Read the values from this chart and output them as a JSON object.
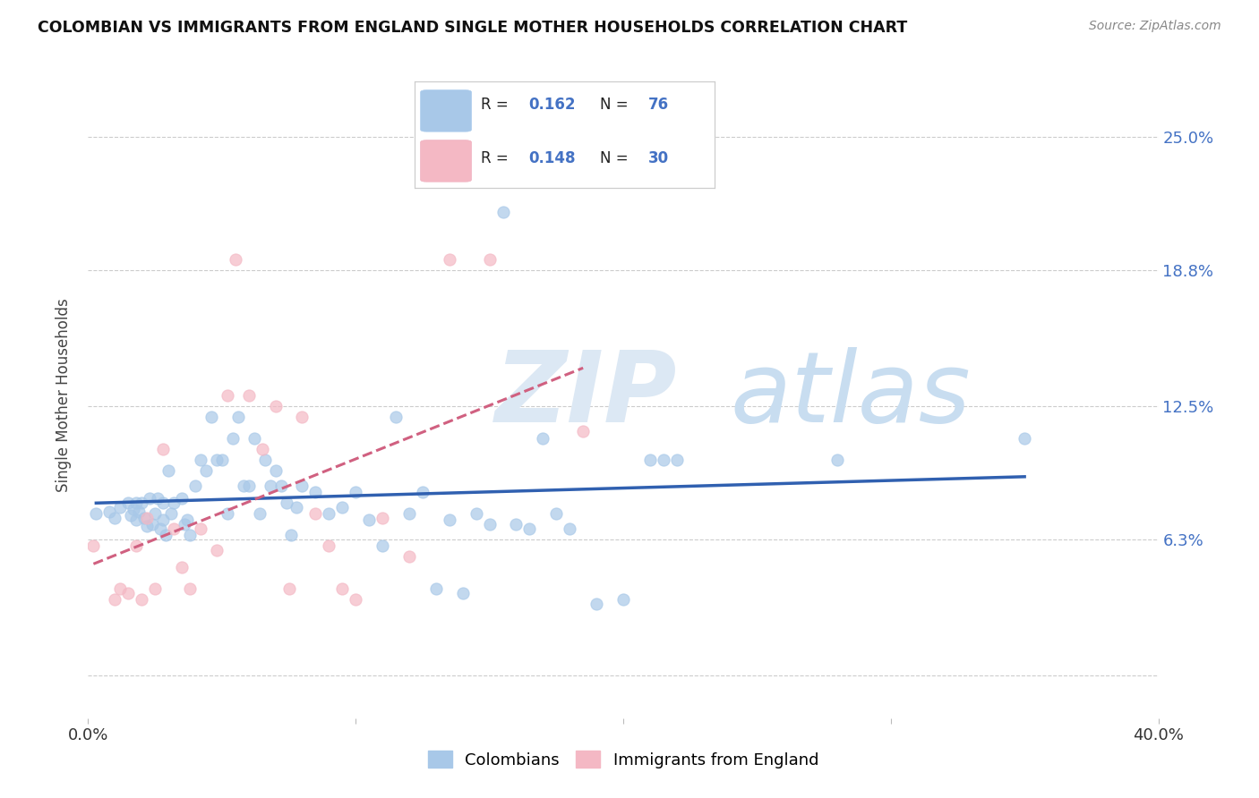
{
  "title": "COLOMBIAN VS IMMIGRANTS FROM ENGLAND SINGLE MOTHER HOUSEHOLDS CORRELATION CHART",
  "source": "Source: ZipAtlas.com",
  "ylabel": "Single Mother Households",
  "xlim": [
    0.0,
    0.4
  ],
  "ylim": [
    -0.02,
    0.28
  ],
  "colombians_R": "0.162",
  "colombians_N": "76",
  "england_R": "0.148",
  "england_N": "30",
  "colombian_color": "#a8c8e8",
  "england_color": "#f4b8c4",
  "colombian_line_color": "#3060b0",
  "england_line_color": "#d06080",
  "colombians_x": [
    0.003,
    0.008,
    0.01,
    0.012,
    0.015,
    0.016,
    0.017,
    0.018,
    0.018,
    0.019,
    0.02,
    0.021,
    0.022,
    0.023,
    0.024,
    0.025,
    0.026,
    0.027,
    0.028,
    0.028,
    0.029,
    0.03,
    0.031,
    0.032,
    0.035,
    0.036,
    0.037,
    0.038,
    0.04,
    0.042,
    0.044,
    0.046,
    0.048,
    0.05,
    0.052,
    0.054,
    0.056,
    0.058,
    0.06,
    0.062,
    0.064,
    0.066,
    0.068,
    0.07,
    0.072,
    0.074,
    0.076,
    0.078,
    0.08,
    0.085,
    0.09,
    0.095,
    0.1,
    0.105,
    0.11,
    0.115,
    0.12,
    0.125,
    0.13,
    0.135,
    0.14,
    0.145,
    0.15,
    0.155,
    0.16,
    0.165,
    0.17,
    0.175,
    0.18,
    0.19,
    0.2,
    0.21,
    0.215,
    0.22,
    0.28,
    0.35
  ],
  "colombians_y": [
    0.075,
    0.076,
    0.073,
    0.078,
    0.08,
    0.074,
    0.077,
    0.08,
    0.072,
    0.076,
    0.08,
    0.073,
    0.069,
    0.082,
    0.07,
    0.075,
    0.082,
    0.068,
    0.072,
    0.08,
    0.065,
    0.095,
    0.075,
    0.08,
    0.082,
    0.07,
    0.072,
    0.065,
    0.088,
    0.1,
    0.095,
    0.12,
    0.1,
    0.1,
    0.075,
    0.11,
    0.12,
    0.088,
    0.088,
    0.11,
    0.075,
    0.1,
    0.088,
    0.095,
    0.088,
    0.08,
    0.065,
    0.078,
    0.088,
    0.085,
    0.075,
    0.078,
    0.085,
    0.072,
    0.06,
    0.12,
    0.075,
    0.085,
    0.04,
    0.072,
    0.038,
    0.075,
    0.07,
    0.215,
    0.07,
    0.068,
    0.11,
    0.075,
    0.068,
    0.033,
    0.035,
    0.1,
    0.1,
    0.1,
    0.1,
    0.11
  ],
  "england_x": [
    0.002,
    0.01,
    0.012,
    0.015,
    0.018,
    0.02,
    0.022,
    0.025,
    0.028,
    0.032,
    0.035,
    0.038,
    0.042,
    0.048,
    0.052,
    0.055,
    0.06,
    0.065,
    0.07,
    0.075,
    0.08,
    0.085,
    0.09,
    0.095,
    0.1,
    0.11,
    0.12,
    0.135,
    0.15,
    0.185
  ],
  "england_y": [
    0.06,
    0.035,
    0.04,
    0.038,
    0.06,
    0.035,
    0.073,
    0.04,
    0.105,
    0.068,
    0.05,
    0.04,
    0.068,
    0.058,
    0.13,
    0.193,
    0.13,
    0.105,
    0.125,
    0.04,
    0.12,
    0.075,
    0.06,
    0.04,
    0.035,
    0.073,
    0.055,
    0.193,
    0.193,
    0.113
  ]
}
